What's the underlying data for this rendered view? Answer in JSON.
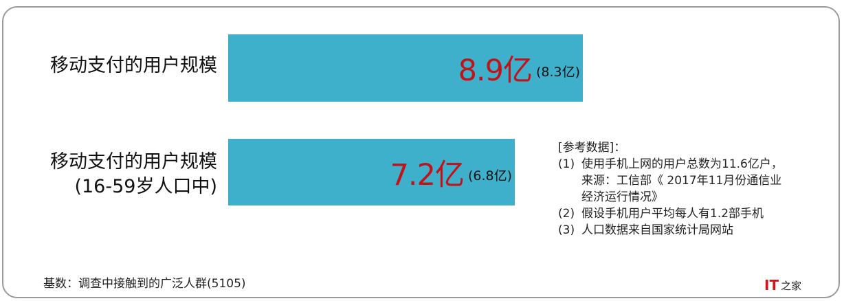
{
  "colors": {
    "bar": "#3fb0cc",
    "value": "#c0141a",
    "frame": "#9a9a9a"
  },
  "chart_data": {
    "type": "bar",
    "orientation": "horizontal",
    "categories": [
      "移动支付的用户规模",
      "移动支付的用户规模 (16-59岁人口中)"
    ],
    "values": [
      8.9,
      7.2
    ],
    "unit": "亿",
    "bars": [
      {
        "label_lines": [
          "移动支付的用户规模"
        ],
        "value_text": "8.9亿",
        "sub_text": "(8.3亿)",
        "value": 8.9
      },
      {
        "label_lines": [
          "移动支付的用户规模",
          "(16-59岁人口中)"
        ],
        "value_text": "7.2亿",
        "sub_text": "(6.8亿)",
        "value": 7.2
      }
    ],
    "title": "",
    "xlabel": "",
    "ylabel": "",
    "grid": false
  },
  "references": {
    "header": "[参考数据]：",
    "items": [
      {
        "num": "(1)",
        "lines": [
          "使用手机上网的用户总数为11.6亿户，",
          "来源：工信部《 2017年11月份通信业",
          "经济运行情况》"
        ]
      },
      {
        "num": "(2)",
        "lines": [
          "假设手机用户平均每人有1.2部手机"
        ]
      },
      {
        "num": "(3)",
        "lines": [
          "人口数据来自国家统计局网站"
        ]
      }
    ]
  },
  "base_note": "基数：调查中接触到的广泛人群(5105)",
  "logo": {
    "it": "IT",
    "zhi": "之家",
    "icon": "ithome-logo-icon"
  }
}
